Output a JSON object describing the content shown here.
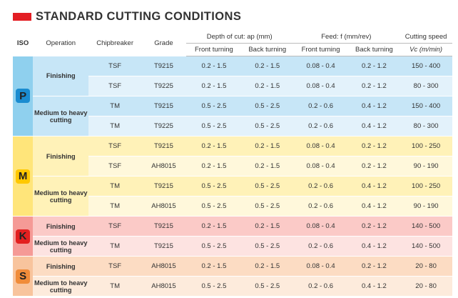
{
  "title": "STANDARD CUTTING CONDITIONS",
  "colors": {
    "accent": "#e31e24",
    "P": "#1a8cd0",
    "M": "#ffc800",
    "K": "#e32020",
    "S": "#f08c3a"
  },
  "headers": {
    "iso": "ISO",
    "operation": "Operation",
    "chipbreaker": "Chipbreaker",
    "grade": "Grade",
    "depth": "Depth of cut: ap (mm)",
    "feed": "Feed: f (mm/rev)",
    "speed": "Cutting speed",
    "front": "Front turning",
    "back": "Back turning",
    "feed_front": "Front turning",
    "feed_back": "Back turning",
    "vc": "Vc (m/min)"
  },
  "groups": [
    {
      "iso": "P",
      "ops": [
        "Finishing",
        "Medium to heavy cutting"
      ]
    },
    {
      "iso": "M",
      "ops": [
        "Finishing",
        "Medium to heavy cutting"
      ]
    },
    {
      "iso": "K",
      "ops": [
        "Finishing",
        "Medium to heavy cutting"
      ]
    },
    {
      "iso": "S",
      "ops": [
        "Finishing",
        "Medium to heavy cutting"
      ]
    }
  ],
  "rows": [
    {
      "chip": "TSF",
      "grade": "T9215",
      "d_front": "0.2 - 1.5",
      "d_back": "0.2 - 1.5",
      "f_front": "0.08 - 0.4",
      "f_back": "0.2 - 1.2",
      "vc": "150 - 400"
    },
    {
      "chip": "TSF",
      "grade": "T9225",
      "d_front": "0.2 - 1.5",
      "d_back": "0.2 - 1.5",
      "f_front": "0.08 - 0.4",
      "f_back": "0.2 - 1.2",
      "vc": "80 - 300"
    },
    {
      "chip": "TM",
      "grade": "T9215",
      "d_front": "0.5 - 2.5",
      "d_back": "0.5 - 2.5",
      "f_front": "0.2 - 0.6",
      "f_back": "0.4 - 1.2",
      "vc": "150 - 400"
    },
    {
      "chip": "TM",
      "grade": "T9225",
      "d_front": "0.5 - 2.5",
      "d_back": "0.5 - 2.5",
      "f_front": "0.2 - 0.6",
      "f_back": "0.4 - 1.2",
      "vc": "80 - 300"
    },
    {
      "chip": "TSF",
      "grade": "T9215",
      "d_front": "0.2 - 1.5",
      "d_back": "0.2 - 1.5",
      "f_front": "0.08 - 0.4",
      "f_back": "0.2 - 1.2",
      "vc": "100 - 250"
    },
    {
      "chip": "TSF",
      "grade": "AH8015",
      "d_front": "0.2 - 1.5",
      "d_back": "0.2 - 1.5",
      "f_front": "0.08 - 0.4",
      "f_back": "0.2 - 1.2",
      "vc": "90 - 190"
    },
    {
      "chip": "TM",
      "grade": "T9215",
      "d_front": "0.5 - 2.5",
      "d_back": "0.5 - 2.5",
      "f_front": "0.2 - 0.6",
      "f_back": "0.4 - 1.2",
      "vc": "100 - 250"
    },
    {
      "chip": "TM",
      "grade": "AH8015",
      "d_front": "0.5 - 2.5",
      "d_back": "0.5 - 2.5",
      "f_front": "0.2 - 0.6",
      "f_back": "0.4 - 1.2",
      "vc": "90 - 190"
    },
    {
      "chip": "TSF",
      "grade": "T9215",
      "d_front": "0.2 - 1.5",
      "d_back": "0.2 - 1.5",
      "f_front": "0.08 - 0.4",
      "f_back": "0.2 - 1.2",
      "vc": "140 - 500"
    },
    {
      "chip": "TM",
      "grade": "T9215",
      "d_front": "0.5 - 2.5",
      "d_back": "0.5 - 2.5",
      "f_front": "0.2 - 0.6",
      "f_back": "0.4 - 1.2",
      "vc": "140 - 500"
    },
    {
      "chip": "TSF",
      "grade": "AH8015",
      "d_front": "0.2 - 1.5",
      "d_back": "0.2 - 1.5",
      "f_front": "0.08 - 0.4",
      "f_back": "0.2 - 1.2",
      "vc": "20 - 80"
    },
    {
      "chip": "TM",
      "grade": "AH8015",
      "d_front": "0.5 - 2.5",
      "d_back": "0.5 - 2.5",
      "f_front": "0.2 - 0.6",
      "f_back": "0.4 - 1.2",
      "vc": "20 - 80"
    }
  ]
}
